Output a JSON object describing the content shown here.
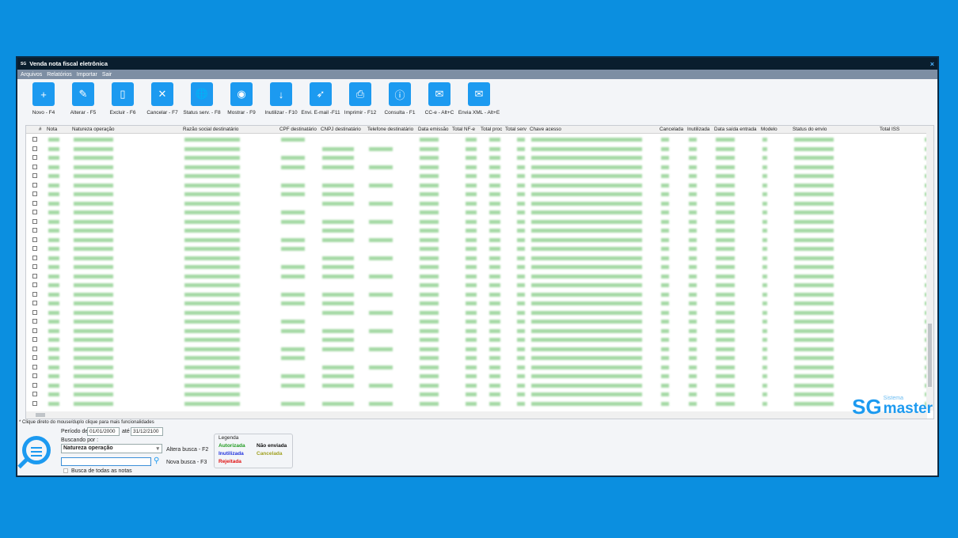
{
  "window": {
    "title": "Venda nota fiscal eletrônica",
    "close": "×"
  },
  "menu": [
    "Arquivos",
    "Relatórios",
    "Importar",
    "Sair"
  ],
  "toolbar": [
    {
      "label": "Novo - F4",
      "icon": "file-plus-icon",
      "glyph": "+"
    },
    {
      "label": "Alterar - F5",
      "icon": "file-edit-icon",
      "glyph": "✎"
    },
    {
      "label": "Excluir - F6",
      "icon": "file-delete-icon",
      "glyph": "▯"
    },
    {
      "label": "Cancelar - F7",
      "icon": "file-cancel-icon",
      "glyph": "✕"
    },
    {
      "label": "Status serv. - F8",
      "icon": "globe-icon",
      "glyph": "🌐"
    },
    {
      "label": "Mostrar - F9",
      "icon": "file-view-icon",
      "glyph": "◉"
    },
    {
      "label": "Inutilizar - F10",
      "icon": "file-download-icon",
      "glyph": "↓"
    },
    {
      "label": "Envi. E-mail -F11",
      "icon": "send-email-icon",
      "glyph": "➶"
    },
    {
      "label": "Imprimir - F12",
      "icon": "printer-icon",
      "glyph": "⎙"
    },
    {
      "label": "Consulta - F1",
      "icon": "info-click-icon",
      "glyph": "ⓘ"
    },
    {
      "label": "CC-e - Alt+C",
      "icon": "envelope-icon",
      "glyph": "✉"
    },
    {
      "label": "Envia XML - Alt+E",
      "icon": "envelope-xml-icon",
      "glyph": "✉"
    }
  ],
  "grid": {
    "columns": [
      "#",
      "Nota",
      "Natureza operação",
      "Razão social destinatário",
      "CPF destinatário",
      "CNPJ destinatário",
      "Telefone destinatário",
      "Data emissão",
      "Total NF-e",
      "Total proc",
      "Total serv",
      "Chave acesso",
      "Cancelada",
      "Inutilizada",
      "Data saída entrada",
      "Modelo",
      "Status do envio",
      "Total ISS"
    ],
    "row_color": "#2e9e2e"
  },
  "bottom": {
    "hint": "* Clique direto do mouse/duplo clique para mais funcionalidades",
    "periodo_label": "Período de",
    "date_from": "01/01/2000",
    "ate_label": "até",
    "date_to": "31/12/2100",
    "buscando_label": "Buscando por :",
    "search_by": "Natureza operação",
    "altera": "Altera busca - F2",
    "nova": "Nova busca - F3",
    "search_value": "",
    "busca_todas": "Busca de todas as notas"
  },
  "legend": {
    "title": "Legenda",
    "autorizada": "Autorizada",
    "nao_enviada": "Não enviada",
    "inutilizada": "Inutilizada",
    "cancelada": "Cancelada",
    "rejeitada": "Rejeitada",
    "colors": {
      "autorizada": "#1f9a1f",
      "nao_enviada": "#111111",
      "inutilizada": "#2233dd",
      "cancelada": "#a0a020",
      "rejeitada": "#e01010"
    }
  },
  "logo": {
    "sg": "SG",
    "sistema": "Sistema",
    "master": "master"
  }
}
